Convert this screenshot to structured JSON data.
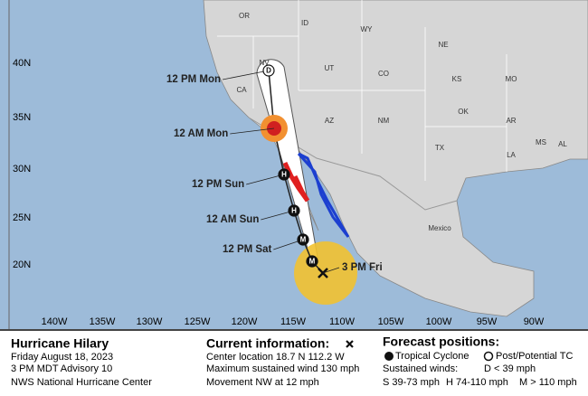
{
  "map": {
    "lat_labels": [
      "40N",
      "35N",
      "30N",
      "25N",
      "20N"
    ],
    "lon_labels": [
      "140W",
      "135W",
      "130W",
      "125W",
      "120W",
      "115W",
      "110W",
      "105W",
      "100W",
      "95W",
      "90W"
    ],
    "region_labels": [
      "OR",
      "ID",
      "WY",
      "NV",
      "UT",
      "CO",
      "NE",
      "CA",
      "KS",
      "MO",
      "AZ",
      "NM",
      "OK",
      "TX",
      "AR",
      "MS",
      "AL",
      "LA",
      "Mexico"
    ],
    "forecast_labels": [
      "12 PM Mon",
      "12 AM Mon",
      "12 PM Sun",
      "12 AM Sun",
      "12 PM Sat",
      "3 PM Fri"
    ],
    "markers": [
      "D",
      "H",
      "H",
      "M",
      "M"
    ]
  },
  "legend": {
    "storm": {
      "title": "Hurricane Hilary",
      "date": "Friday August 18, 2023",
      "advisory": "3 PM MDT Advisory 10",
      "agency": "NWS National Hurricane Center"
    },
    "current": {
      "title": "Current information:",
      "location": "Center location 18.7 N 112.2 W",
      "wind": "Maximum sustained wind 130 mph",
      "movement": "Movement NW at 12 mph"
    },
    "forecast": {
      "title": "Forecast positions:",
      "tropical": "Tropical Cyclone",
      "post": "Post/Potential TC",
      "winds": "Sustained winds:",
      "d": "D < 39 mph",
      "s": "S 39-73 mph",
      "h": "H 74-110 mph",
      "m": "M > 110 mph"
    }
  }
}
